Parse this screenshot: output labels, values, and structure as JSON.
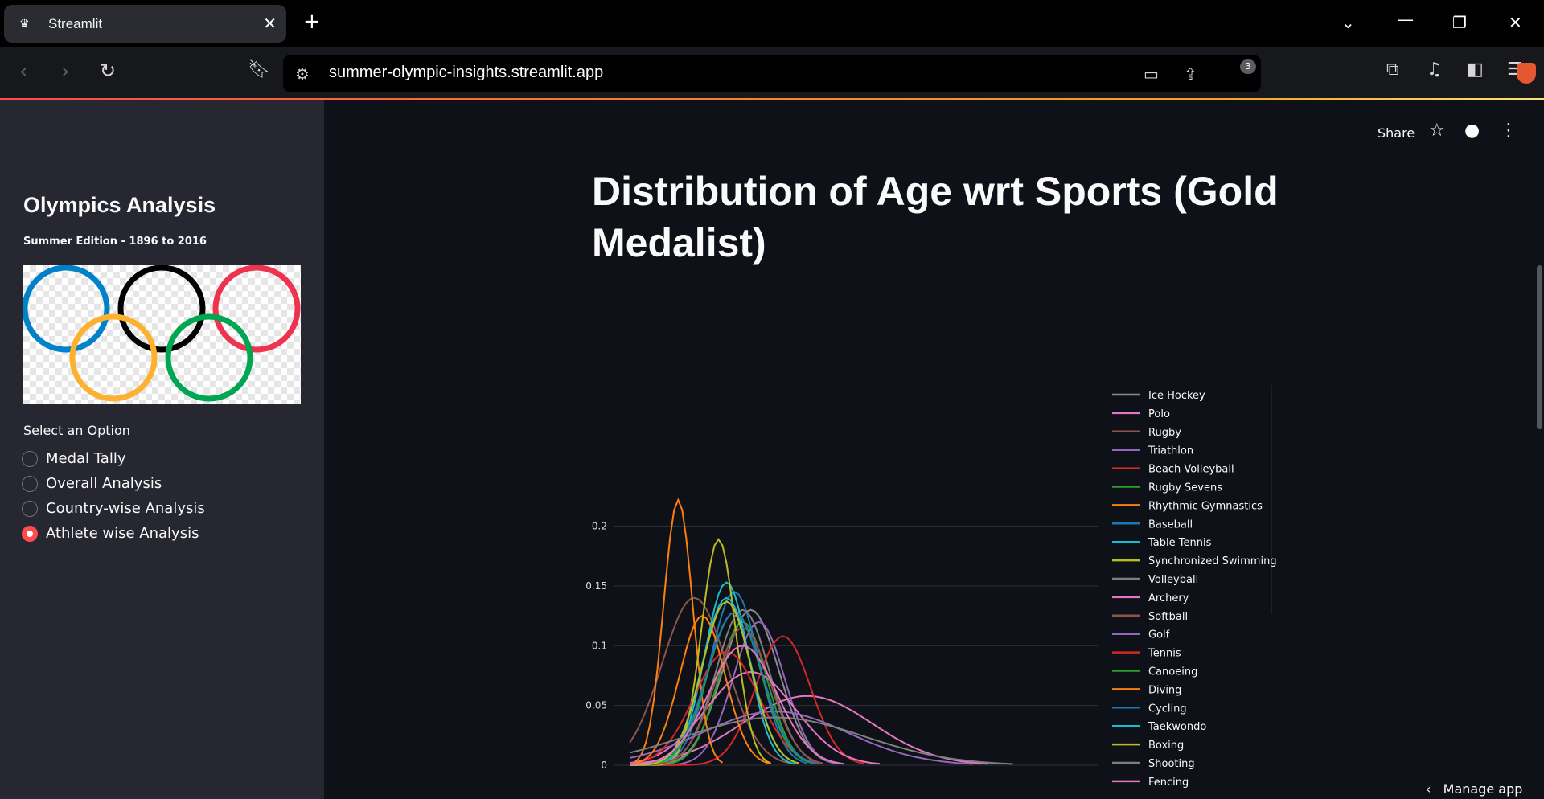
{
  "browser": {
    "tab_title": "Streamlit",
    "url": "summer-olympic-insights.streamlit.app",
    "brave_shield_count": "3"
  },
  "sidebar": {
    "title": "Olympics Analysis",
    "subtitle": "Summer Edition - 1896 to 2016",
    "select_label": "Select an Option",
    "options": [
      {
        "label": "Medal Tally",
        "checked": false
      },
      {
        "label": "Overall Analysis",
        "checked": false
      },
      {
        "label": "Country-wise Analysis",
        "checked": false
      },
      {
        "label": "Athlete wise Analysis",
        "checked": true
      }
    ]
  },
  "header": {
    "share_label": "Share",
    "manage_app_label": "Manage app"
  },
  "main": {
    "title": "Distribution of Age wrt Sports (Gold Medalist)"
  },
  "colors": {
    "accent": "#ff4b4b",
    "sidebar_bg": "#262730",
    "main_bg": "#0e1117"
  },
  "chart_data": {
    "type": "line",
    "title": "",
    "xlabel": "",
    "ylabel": "",
    "xlim": [
      10,
      70
    ],
    "ylim": [
      0,
      0.23
    ],
    "y_ticks": [
      0,
      0.05,
      0.1,
      0.15,
      0.2
    ],
    "y_tick_labels": [
      "0",
      "0.05",
      "0.1",
      "0.15",
      "0.2"
    ],
    "grid": true,
    "legend_position": "right",
    "series": [
      {
        "name": "Ice Hockey",
        "color": "#8c8c8c",
        "peak_x": 27,
        "peak_y": 0.13,
        "width": 3.5
      },
      {
        "name": "Polo",
        "color": "#e377c2",
        "peak_x": 34,
        "peak_y": 0.058,
        "width": 8
      },
      {
        "name": "Rugby",
        "color": "#8c564b",
        "peak_x": 20,
        "peak_y": 0.14,
        "width": 4
      },
      {
        "name": "Triathlon",
        "color": "#9467bd",
        "peak_x": 28,
        "peak_y": 0.12,
        "width": 3.2
      },
      {
        "name": "Beach Volleyball",
        "color": "#d62728",
        "peak_x": 31,
        "peak_y": 0.108,
        "width": 3.4
      },
      {
        "name": "Rugby Sevens",
        "color": "#2ca02c",
        "peak_x": 26,
        "peak_y": 0.12,
        "width": 3
      },
      {
        "name": "Rhythmic Gymnastics",
        "color": "#ff7f0e",
        "peak_x": 18,
        "peak_y": 0.222,
        "width": 1.8
      },
      {
        "name": "Baseball",
        "color": "#1f77b4",
        "peak_x": 25,
        "peak_y": 0.145,
        "width": 3
      },
      {
        "name": "Table Tennis",
        "color": "#17becf",
        "peak_x": 24,
        "peak_y": 0.153,
        "width": 2.7
      },
      {
        "name": "Synchronized Swimming",
        "color": "#bcbd22",
        "peak_x": 23,
        "peak_y": 0.189,
        "width": 2.1
      },
      {
        "name": "Volleyball",
        "color": "#7f7f7f",
        "peak_x": 26,
        "peak_y": 0.13,
        "width": 3.3
      },
      {
        "name": "Archery",
        "color": "#e377c2",
        "peak_x": 27,
        "peak_y": 0.078,
        "width": 5.5
      },
      {
        "name": "Softball",
        "color": "#8c564b",
        "peak_x": 26,
        "peak_y": 0.115,
        "width": 3.4
      },
      {
        "name": "Golf",
        "color": "#9467bd",
        "peak_x": 30,
        "peak_y": 0.045,
        "width": 9
      },
      {
        "name": "Tennis",
        "color": "#d62728",
        "peak_x": 24,
        "peak_y": 0.095,
        "width": 4
      },
      {
        "name": "Canoeing",
        "color": "#2ca02c",
        "peak_x": 25,
        "peak_y": 0.128,
        "width": 3.3
      },
      {
        "name": "Diving",
        "color": "#ff7f0e",
        "peak_x": 21,
        "peak_y": 0.125,
        "width": 2.8
      },
      {
        "name": "Cycling",
        "color": "#1f77b4",
        "peak_x": 25,
        "peak_y": 0.128,
        "width": 3.4
      },
      {
        "name": "Taekwondo",
        "color": "#17becf",
        "peak_x": 24,
        "peak_y": 0.14,
        "width": 3
      },
      {
        "name": "Boxing",
        "color": "#bcbd22",
        "peak_x": 24,
        "peak_y": 0.137,
        "width": 3
      },
      {
        "name": "Shooting",
        "color": "#7f7f7f",
        "peak_x": 30,
        "peak_y": 0.04,
        "width": 11
      },
      {
        "name": "Fencing",
        "color": "#e377c2",
        "peak_x": 26,
        "peak_y": 0.1,
        "width": 4.2
      }
    ]
  }
}
